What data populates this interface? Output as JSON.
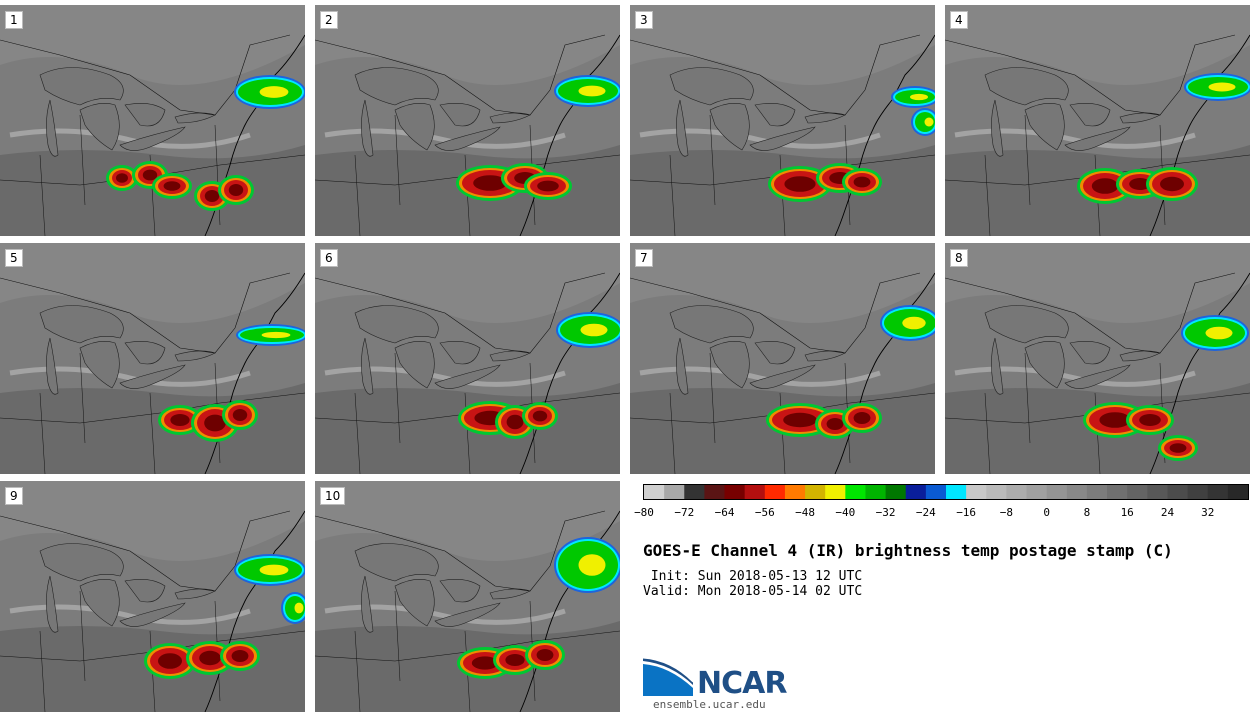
{
  "panels": [
    {
      "label": "1"
    },
    {
      "label": "2"
    },
    {
      "label": "3"
    },
    {
      "label": "4"
    },
    {
      "label": "5"
    },
    {
      "label": "6"
    },
    {
      "label": "7"
    },
    {
      "label": "8"
    },
    {
      "label": "9"
    },
    {
      "label": "10"
    }
  ],
  "colorbar": {
    "colors": [
      "#d0d0d0",
      "#a8a8a8",
      "#333333",
      "#5a1414",
      "#780000",
      "#b40f0f",
      "#ff2a00",
      "#ff7a00",
      "#d2b400",
      "#f0f000",
      "#00e600",
      "#00b400",
      "#007800",
      "#0a1e9b",
      "#0a5ad2",
      "#00e6ff",
      "#c8c8c8",
      "#bababa",
      "#acacac",
      "#a0a0a0",
      "#949494",
      "#888888",
      "#7c7c7c",
      "#707070",
      "#646464",
      "#585858",
      "#4c4c4c",
      "#404040",
      "#343434",
      "#282828"
    ],
    "ticks": [
      "−80",
      "−72",
      "−64",
      "−56",
      "−48",
      "−40",
      "−32",
      "−24",
      "−16",
      "−8",
      "0",
      "8",
      "16",
      "24",
      "32"
    ]
  },
  "title": "GOES-E Channel 4 (IR) brightness temp postage stamp (C)",
  "init": " Init: Sun 2018-05-13 12 UTC",
  "valid": "Valid: Mon 2018-05-14 02 UTC",
  "logo": {
    "text": "NCAR",
    "url": "ensemble.ucar.edu"
  }
}
